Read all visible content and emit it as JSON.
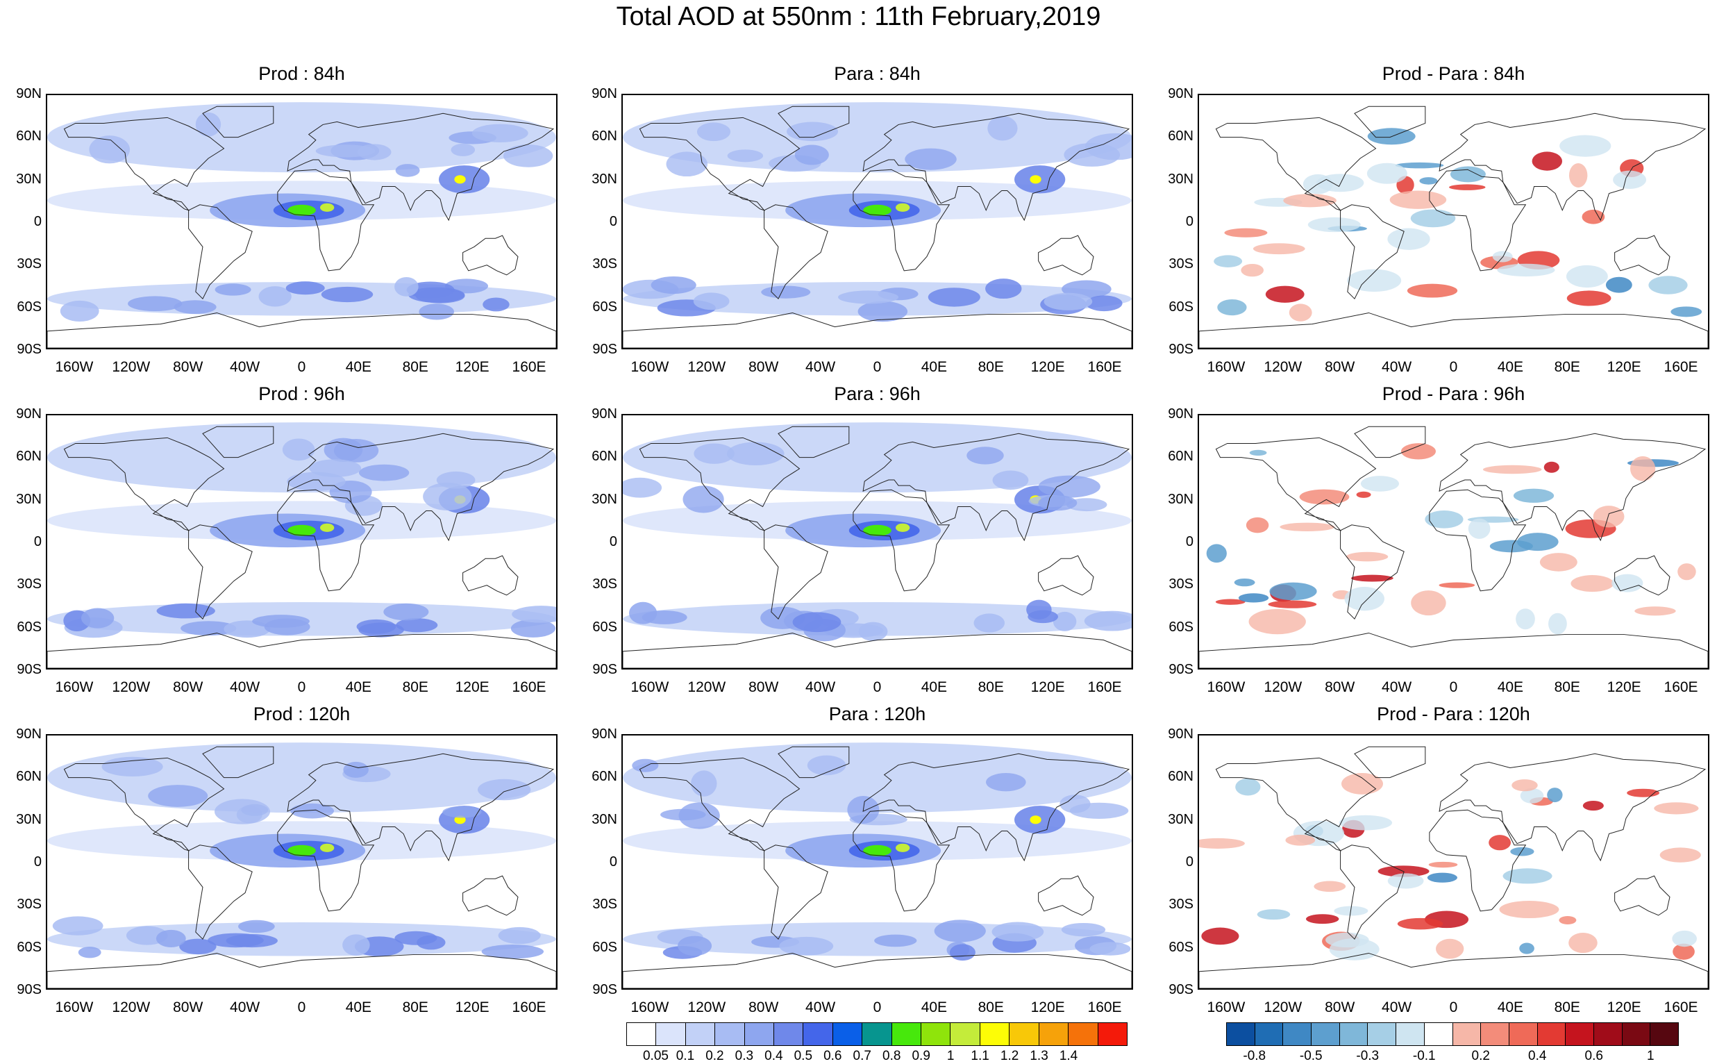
{
  "title": "Total AOD at 550nm : 11th February,2019",
  "panels": [
    {
      "id": "prod-84",
      "title": "Prod : 84h",
      "kind": "aod",
      "seed": 11
    },
    {
      "id": "para-84",
      "title": "Para : 84h",
      "kind": "aod",
      "seed": 23
    },
    {
      "id": "diff-84",
      "title": "Prod - Para : 84h",
      "kind": "diff",
      "seed": 37
    },
    {
      "id": "prod-96",
      "title": "Prod : 96h",
      "kind": "aod",
      "seed": 41
    },
    {
      "id": "para-96",
      "title": "Para : 96h",
      "kind": "aod",
      "seed": 53
    },
    {
      "id": "diff-96",
      "title": "Prod - Para : 96h",
      "kind": "diff",
      "seed": 67
    },
    {
      "id": "prod-120",
      "title": "Prod : 120h",
      "kind": "aod",
      "seed": 71
    },
    {
      "id": "para-120",
      "title": "Para : 120h",
      "kind": "aod",
      "seed": 83
    },
    {
      "id": "diff-120",
      "title": "Prod - Para : 120h",
      "kind": "diff",
      "seed": 97
    }
  ],
  "lat_labels": [
    "90N",
    "60N",
    "30N",
    "0",
    "30S",
    "60S",
    "90S"
  ],
  "lon_labels": [
    "160W",
    "120W",
    "80W",
    "40W",
    "0",
    "40E",
    "80E",
    "120E",
    "160E"
  ],
  "aod_colorbar": {
    "colors": [
      "#ffffff",
      "#dbe4fb",
      "#c2d1f7",
      "#a8bcf3",
      "#8ea6ef",
      "#6f88ea",
      "#4466ea",
      "#0a5fe8",
      "#07958f",
      "#47e80c",
      "#8fe40b",
      "#c4ec3a",
      "#fdfd06",
      "#f8c808",
      "#f6a20a",
      "#f5720a",
      "#f41a0a"
    ],
    "labels": [
      "0.05",
      "0.1",
      "0.2",
      "0.3",
      "0.4",
      "0.5",
      "0.6",
      "0.7",
      "0.8",
      "0.9",
      "1",
      "1.1",
      "1.2",
      "1.3",
      "1.4"
    ]
  },
  "diff_colorbar": {
    "colors": [
      "#0c4fa0",
      "#1f6db4",
      "#3f88c4",
      "#5d9fcf",
      "#7fb7d9",
      "#a6cfe6",
      "#cfe5f1",
      "#ffffff",
      "#f6b7a8",
      "#f38c7a",
      "#ef6a58",
      "#e33a33",
      "#c5141e",
      "#a00c19",
      "#7a0913",
      "#560710"
    ],
    "labels": [
      "-0.8",
      "-0.5",
      "-0.3",
      "-0.1",
      "0.2",
      "0.4",
      "0.6",
      "1"
    ]
  }
}
